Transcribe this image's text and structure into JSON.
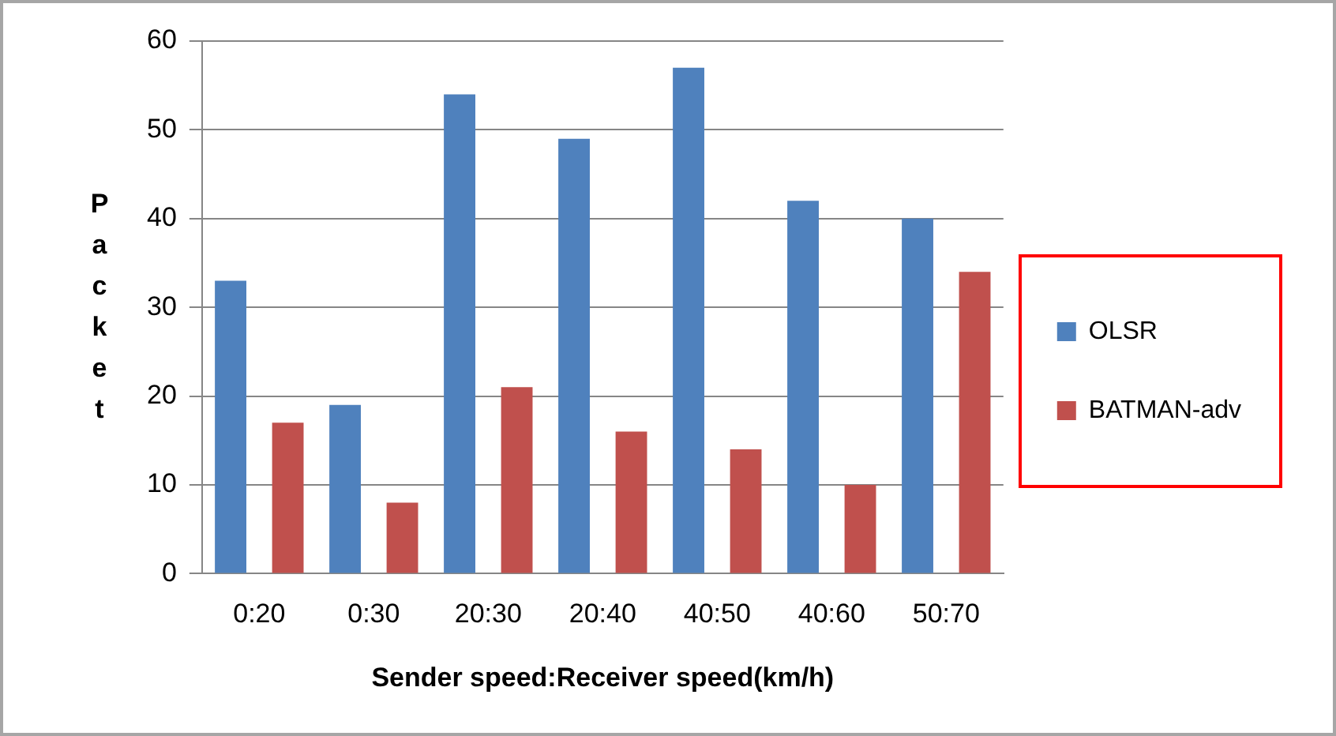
{
  "chart_data": {
    "type": "bar",
    "xlabel": "Sender speed:Receiver speed(km/h)",
    "ylabel": "Packet",
    "categories": [
      "0:20",
      "0:30",
      "20:30",
      "20:40",
      "40:50",
      "40:60",
      "50:70"
    ],
    "series": [
      {
        "name": "OLSR",
        "color": "#4f81bd",
        "values": [
          33,
          19,
          54,
          49,
          57,
          42,
          40
        ]
      },
      {
        "name": "BATMAN-adv",
        "color": "#c0504d",
        "values": [
          17,
          8,
          21,
          16,
          14,
          10,
          34
        ]
      }
    ],
    "ylim": [
      0,
      60
    ],
    "yticks": [
      0,
      10,
      20,
      30,
      40,
      50,
      60
    ],
    "grid": "y",
    "legend": "right"
  }
}
